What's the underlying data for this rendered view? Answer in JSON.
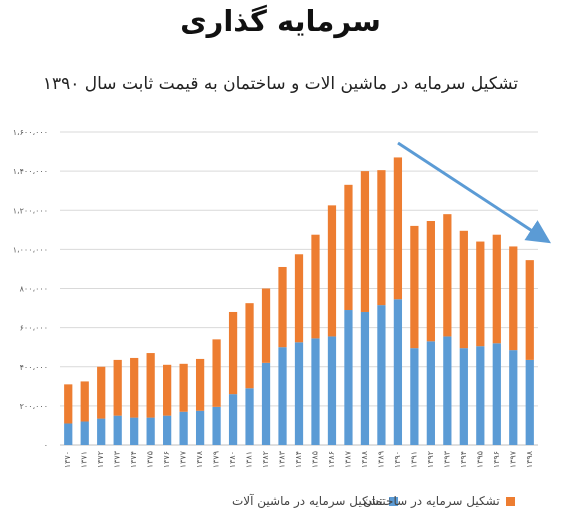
{
  "page": {
    "title": "سرمایه گذاری"
  },
  "legend": {
    "machinery": "تشکیل سرمایه در ماشین آلات",
    "buildings": "تشکیل سرمایه در ساختمان"
  },
  "colors": {
    "machinery": "#5B9BD5",
    "buildings": "#ED7D31",
    "trend_arrow": "#5B9BD5",
    "grid": "#d9d9d9"
  },
  "chart_data": {
    "type": "bar",
    "stacked": true,
    "title": "تشکیل سرمایه در ماشین الات و ساختمان به قیمت ثابت سال ۱۳۹۰",
    "xlabel": "",
    "ylabel": "",
    "ylim": [
      0,
      1600000
    ],
    "yticks": [
      0,
      200000,
      400000,
      600000,
      800000,
      1000000,
      1200000,
      1400000,
      1600000
    ],
    "ytick_labels": [
      "۰",
      "۲۰۰،۰۰۰",
      "۴۰۰،۰۰۰",
      "۶۰۰،۰۰۰",
      "۸۰۰،۰۰۰",
      "۱،۰۰۰،۰۰۰",
      "۱،۲۰۰،۰۰۰",
      "۱،۴۰۰،۰۰۰",
      "۱،۶۰۰،۰۰۰"
    ],
    "categories": [
      "۱۳۷۰",
      "۱۳۷۱",
      "۱۳۷۲",
      "۱۳۷۳",
      "۱۳۷۴",
      "۱۳۷۵",
      "۱۳۷۶",
      "۱۳۷۷",
      "۱۳۷۸",
      "۱۳۷۹",
      "۱۳۸۰",
      "۱۳۸۱",
      "۱۳۸۲",
      "۱۳۸۳",
      "۱۳۸۴",
      "۱۳۸۵",
      "۱۳۸۶",
      "۱۳۸۷",
      "۱۳۸۸",
      "۱۳۸۹",
      "۱۳۹۰",
      "۱۳۹۱",
      "۱۳۹۲",
      "۱۳۹۳",
      "۱۳۹۴",
      "۱۳۹۵",
      "۱۳۹۶",
      "۱۳۹۷",
      "۱۳۹۸"
    ],
    "series": [
      {
        "name": "تشکیل سرمایه در ماشین آلات",
        "values": [
          110000,
          120000,
          135000,
          150000,
          140000,
          140000,
          150000,
          170000,
          175000,
          195000,
          260000,
          290000,
          420000,
          500000,
          525000,
          545000,
          555000,
          690000,
          680000,
          715000,
          745000,
          495000,
          530000,
          555000,
          495000,
          505000,
          520000,
          485000,
          435000
        ]
      },
      {
        "name": "تشکیل سرمایه در ساختمان",
        "values": [
          200000,
          205000,
          265000,
          285000,
          305000,
          330000,
          260000,
          245000,
          265000,
          345000,
          420000,
          435000,
          380000,
          410000,
          450000,
          530000,
          670000,
          640000,
          720000,
          690000,
          725000,
          625000,
          615000,
          625000,
          600000,
          535000,
          555000,
          530000,
          510000
        ]
      }
    ],
    "grid": true,
    "legend_position": "bottom",
    "annotations": [
      {
        "type": "arrow",
        "direction": "down-right",
        "description": "declining trend after 1390"
      }
    ]
  }
}
